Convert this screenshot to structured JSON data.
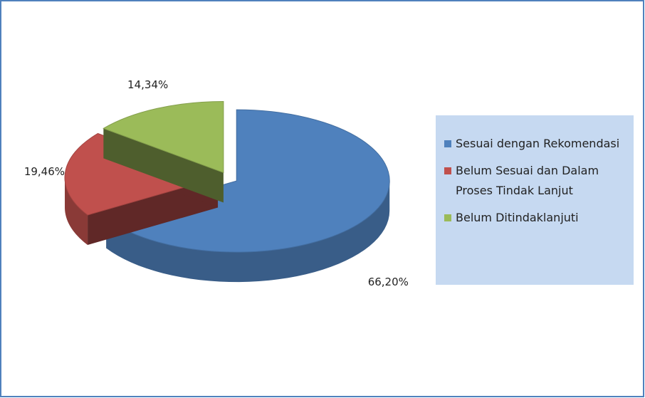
{
  "chart_data": {
    "type": "pie",
    "categories": [
      "Sesuai dengan Rekomendasi",
      "Belum Sesuai dan Dalam Proses Tindak Lanjut",
      "Belum Ditindaklanjuti"
    ],
    "values": [
      66.2,
      19.46,
      14.34
    ],
    "value_labels": [
      "66,20%",
      "19,46%",
      "14,34%"
    ],
    "colors": [
      "#4f81bd",
      "#c0504d",
      "#9bbb59"
    ],
    "legend": "right"
  }
}
